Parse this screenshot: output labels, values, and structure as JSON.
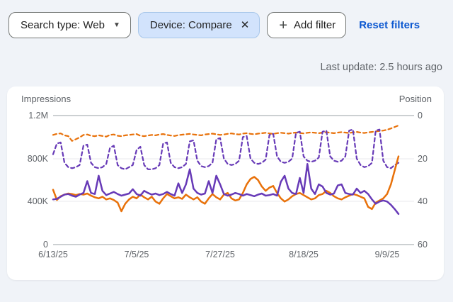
{
  "filter_bar": {
    "search_type_chip": {
      "label": "Search type: Web"
    },
    "device_chip": {
      "label": "Device: Compare"
    },
    "add_filter_chip": {
      "label": "Add filter"
    },
    "reset_link": "Reset filters"
  },
  "status": {
    "last_update": "Last update: 2.5 hours ago"
  },
  "colors": {
    "purple_series": "#673ab7",
    "orange_series": "#e8710a",
    "link_blue": "#0b57d0",
    "active_chip_bg": "#d2e3fc",
    "card_bg": "#ffffff",
    "page_bg": "#f0f3f8"
  },
  "chart_data": {
    "type": "line",
    "title": "",
    "grid": true,
    "legend": "none",
    "left_axis": {
      "label": "Impressions",
      "ticks": [
        "1.2M",
        "800K",
        "400K",
        "0"
      ],
      "range_thousands": [
        0,
        1200
      ]
    },
    "right_axis": {
      "label": "Position",
      "ticks": [
        "0",
        "20",
        "40",
        "60"
      ],
      "range": [
        0,
        60
      ],
      "inverted": true
    },
    "x_axis": {
      "tick_labels": [
        "6/13/25",
        "7/5/25",
        "7/27/25",
        "8/18/25",
        "9/9/25"
      ],
      "start": "6/13/25",
      "end": "9/12/25",
      "days": 92
    },
    "series": [
      {
        "id": "position-orange-dashed",
        "name": "Position (orange, dashed)",
        "axis": "right",
        "style": "dashed",
        "color": "#e8710a",
        "values": [
          9,
          8.5,
          8.3,
          9.2,
          9.6,
          11.8,
          11,
          10.2,
          9,
          8.8,
          9.4,
          9.6,
          9.2,
          9.5,
          9.8,
          9,
          8.8,
          9.4,
          9.6,
          9.2,
          9,
          8.8,
          8.6,
          9.4,
          9.6,
          9.3,
          9,
          9.2,
          8.8,
          8.6,
          9,
          9.3,
          9.5,
          9.1,
          8.9,
          8.7,
          8.5,
          8.8,
          9,
          9.2,
          8.8,
          8.6,
          8.4,
          8.7,
          9,
          8.8,
          8.5,
          8.3,
          8.6,
          8.8,
          8.4,
          8.2,
          8.5,
          8.7,
          8.4,
          8.2,
          8,
          8.3,
          8.5,
          8.2,
          8,
          8.2,
          8.4,
          8.1,
          7.9,
          8.1,
          8.3,
          8,
          7.8,
          8,
          8.2,
          7.9,
          7.7,
          8,
          8.2,
          7.9,
          7.7,
          7.9,
          8.1,
          7.8,
          7.6,
          7.9,
          8.1,
          7.8,
          7.6,
          7.4,
          7.2,
          7,
          6.6,
          6,
          5.3,
          4.6
        ]
      },
      {
        "id": "position-purple-dashed",
        "name": "Position (purple, dashed)",
        "axis": "right",
        "style": "dashed",
        "color": "#673ab7",
        "values": [
          18,
          13,
          12.5,
          22,
          24,
          24.5,
          24,
          23,
          14,
          13.5,
          22,
          24,
          24.5,
          24,
          22.5,
          15,
          14,
          23,
          24.5,
          25,
          24,
          23,
          16,
          14.5,
          23,
          25,
          25,
          24.5,
          23,
          13,
          12.5,
          22,
          24,
          24.5,
          24,
          22.5,
          12,
          11.5,
          21,
          23.5,
          24,
          23.5,
          22,
          11,
          10.5,
          20,
          22.5,
          23,
          22.5,
          21,
          10,
          9.5,
          20,
          22,
          22.5,
          22,
          20.5,
          9,
          8.5,
          19,
          21.5,
          22,
          21.5,
          20,
          8,
          7.5,
          19,
          21,
          21.5,
          21,
          19.5,
          7.5,
          7,
          19,
          21,
          21.5,
          21,
          19,
          7,
          6.5,
          20,
          23,
          24,
          23.5,
          22,
          7,
          6.5,
          21,
          24,
          24.5,
          23,
          22
        ]
      },
      {
        "id": "impressions-orange-solid",
        "name": "Impressions (orange, solid)",
        "axis": "left",
        "style": "solid",
        "color": "#e8710a",
        "unit": "thousands",
        "values": [
          510,
          415,
          450,
          465,
          475,
          470,
          460,
          470,
          465,
          475,
          455,
          440,
          430,
          445,
          420,
          430,
          415,
          390,
          310,
          380,
          420,
          445,
          430,
          465,
          440,
          420,
          445,
          400,
          380,
          430,
          470,
          450,
          430,
          440,
          425,
          465,
          440,
          420,
          440,
          400,
          380,
          430,
          470,
          440,
          420,
          465,
          480,
          430,
          410,
          420,
          480,
          560,
          610,
          630,
          600,
          540,
          500,
          530,
          545,
          480,
          430,
          400,
          420,
          450,
          470,
          480,
          460,
          440,
          420,
          430,
          460,
          470,
          500,
          480,
          450,
          430,
          420,
          440,
          455,
          470,
          460,
          445,
          430,
          350,
          330,
          390,
          410,
          430,
          470,
          560,
          690,
          820
        ]
      },
      {
        "id": "impressions-purple-solid",
        "name": "Impressions (purple, solid)",
        "axis": "left",
        "style": "solid",
        "color": "#673ab7",
        "unit": "thousands",
        "values": [
          420,
          425,
          445,
          465,
          470,
          455,
          445,
          465,
          480,
          590,
          480,
          470,
          640,
          500,
          460,
          475,
          490,
          470,
          455,
          465,
          475,
          515,
          470,
          455,
          500,
          480,
          465,
          475,
          460,
          470,
          490,
          470,
          455,
          570,
          480,
          560,
          700,
          520,
          480,
          465,
          475,
          590,
          480,
          640,
          560,
          470,
          455,
          465,
          480,
          470,
          455,
          470,
          460,
          450,
          465,
          475,
          455,
          460,
          470,
          455,
          585,
          640,
          520,
          480,
          470,
          620,
          480,
          750,
          520,
          470,
          560,
          540,
          480,
          465,
          475,
          550,
          560,
          480,
          470,
          465,
          520,
          480,
          500,
          470,
          420,
          380,
          400,
          410,
          400,
          370,
          330,
          285
        ]
      }
    ]
  }
}
